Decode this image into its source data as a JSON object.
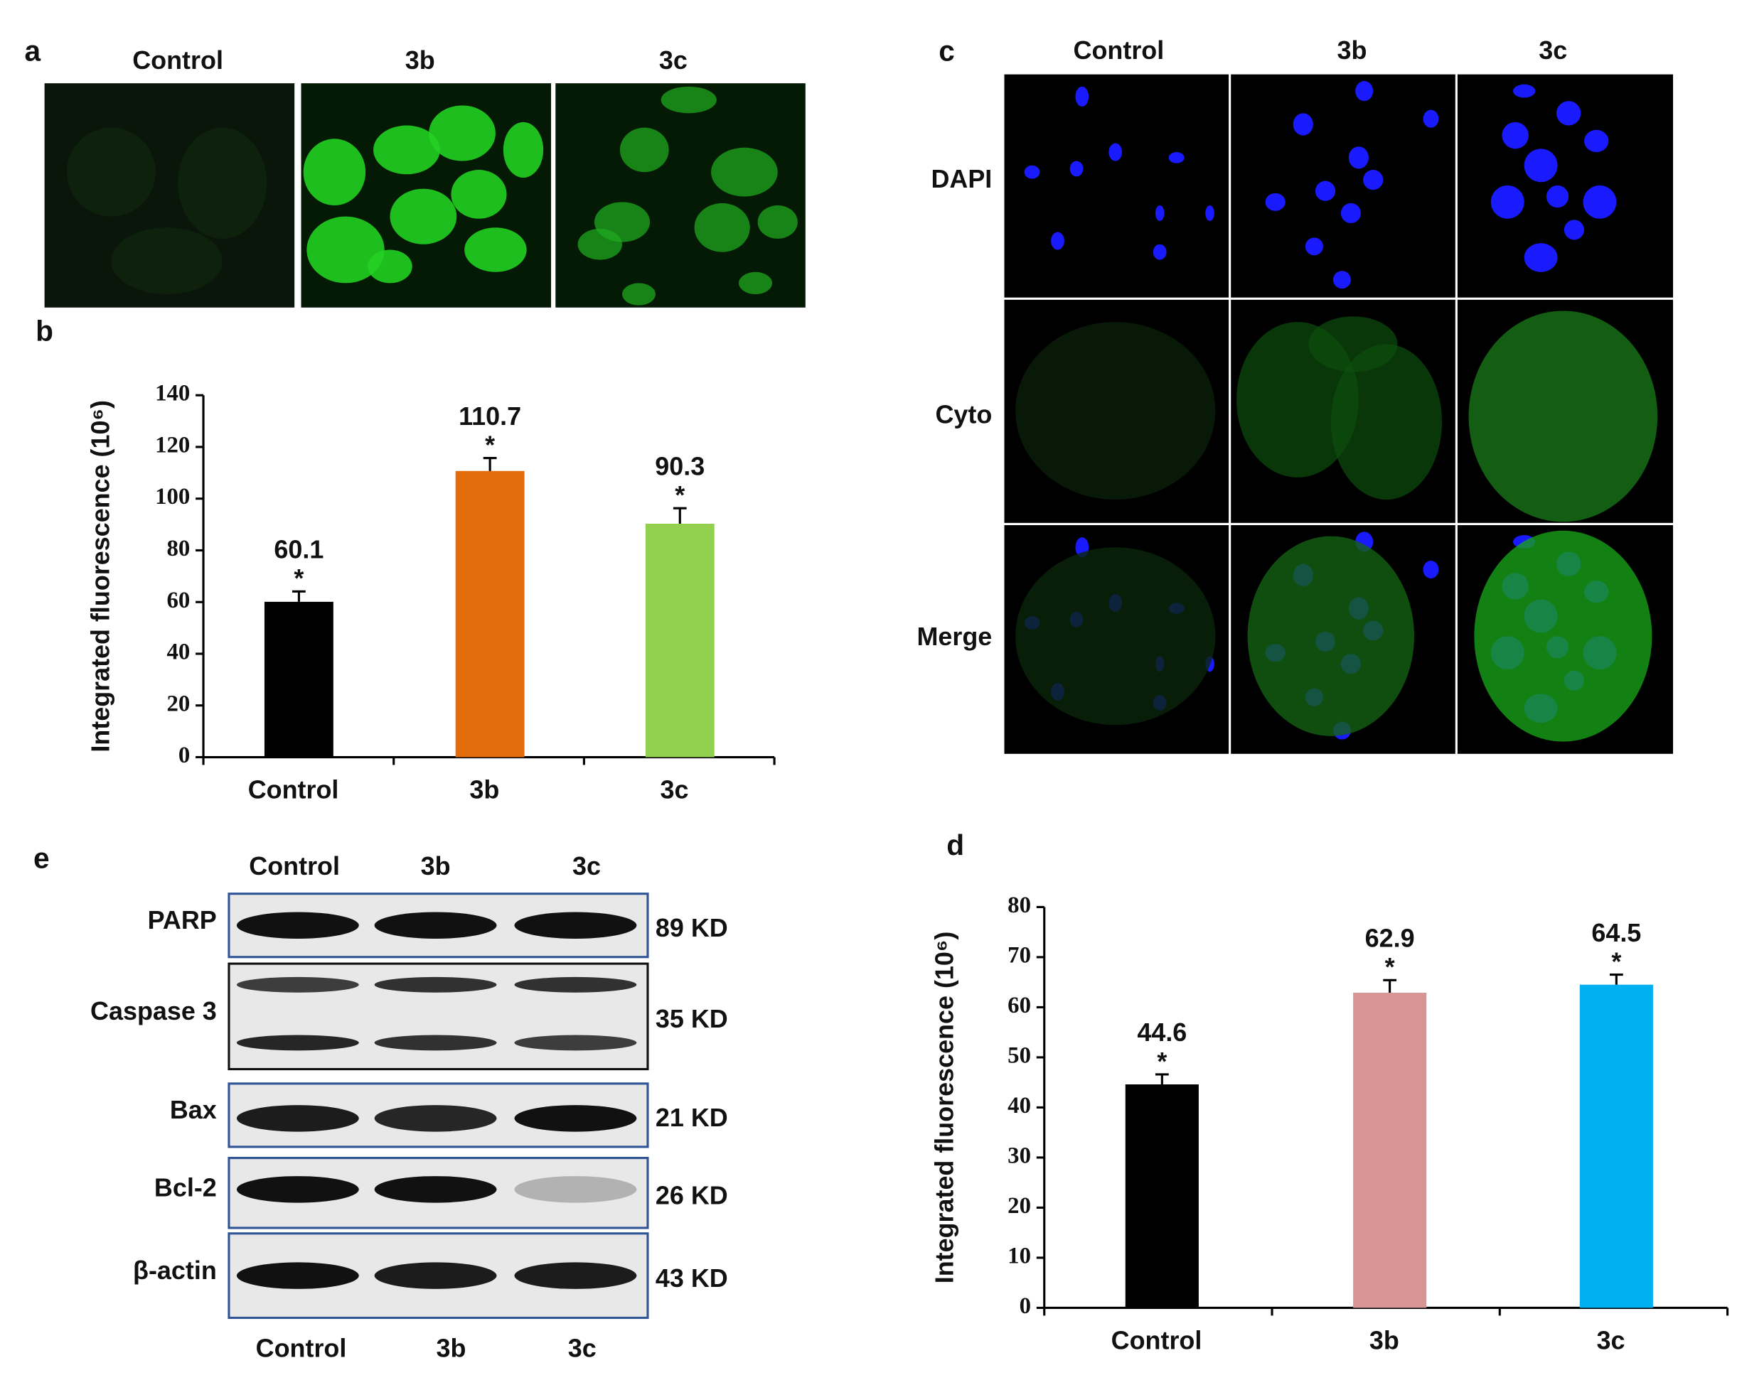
{
  "panels": {
    "a": {
      "label": "a",
      "columns": [
        "Control",
        "3b",
        "3c"
      ]
    },
    "c": {
      "label": "c",
      "columns": [
        "Control",
        "3b",
        "3c"
      ],
      "rows": [
        "DAPI",
        "Cyto",
        "Merge"
      ]
    },
    "e": {
      "label": "e",
      "top_columns": [
        "Control",
        "3b",
        "3c"
      ],
      "bands": [
        {
          "name": "PARP",
          "size": "89 KD"
        },
        {
          "name": "Caspase 3",
          "size": "35 KD"
        },
        {
          "name": "Bax",
          "size": "21 KD"
        },
        {
          "name": "Bcl-2",
          "size": "26 KD"
        },
        {
          "name": "β-actin",
          "size": "43 KD"
        }
      ],
      "bottom_columns": [
        "Control",
        "3b",
        "3c"
      ]
    }
  },
  "chart_data": [
    {
      "type": "bar",
      "label": "b",
      "ylabel": "Integrated fluorescence (10⁶)",
      "categories": [
        "Control",
        "3b",
        "3c"
      ],
      "values": [
        60.1,
        110.7,
        90.3
      ],
      "errors": [
        4,
        5,
        6
      ],
      "significance": [
        "*",
        "*",
        "*"
      ],
      "colors": [
        "#000000",
        "#e36c0a",
        "#92d050"
      ],
      "ylim": [
        0,
        140
      ],
      "yticks": [
        0,
        20,
        40,
        60,
        80,
        100,
        120,
        140
      ]
    },
    {
      "type": "bar",
      "label": "d",
      "ylabel": "Integrated fluorescence (10⁶)",
      "categories": [
        "Control",
        "3b",
        "3c"
      ],
      "values": [
        44.6,
        62.9,
        64.5
      ],
      "errors": [
        2,
        2.5,
        2
      ],
      "significance": [
        "*",
        "*",
        "*"
      ],
      "colors": [
        "#000000",
        "#d99594",
        "#00b0f0"
      ],
      "ylim": [
        0,
        80
      ],
      "yticks": [
        0,
        10,
        20,
        30,
        40,
        50,
        60,
        70,
        80
      ]
    }
  ]
}
